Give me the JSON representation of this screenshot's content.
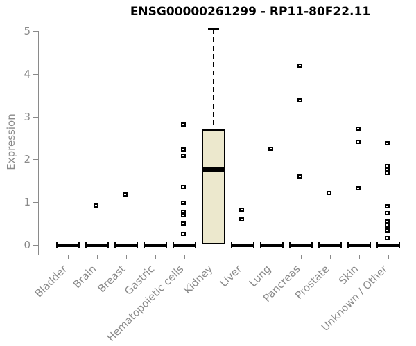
{
  "header": {
    "title": "ENSG00000261299 - RP11-80F22.11"
  },
  "chart_data": {
    "type": "boxplot",
    "title": "ENSG00000261299 - RP11-80F22.11",
    "xlabel": "",
    "ylabel": "Expression",
    "ylim": [
      0,
      5
    ],
    "yticks": [
      0,
      1,
      2,
      3,
      4,
      5
    ],
    "grid": false,
    "legend": "none",
    "box_fill_color": "#ece8cd",
    "box_line_color": "#000000",
    "axis_color": "#8a8a8a",
    "categories": [
      "Bladder",
      "Brain",
      "Breast",
      "Gastric",
      "Hematopoietic cells",
      "Kidney",
      "Liver",
      "Lung",
      "Pancreas",
      "Prostate",
      "Skin",
      "Unknown / Other"
    ],
    "boxes": [
      {
        "category": "Bladder",
        "q1": 0,
        "median": 0,
        "q3": 0,
        "whisker_low": 0,
        "whisker_high": 0,
        "outliers": []
      },
      {
        "category": "Brain",
        "q1": 0,
        "median": 0,
        "q3": 0,
        "whisker_low": 0,
        "whisker_high": 0,
        "outliers": [
          0.92
        ]
      },
      {
        "category": "Breast",
        "q1": 0,
        "median": 0,
        "q3": 0,
        "whisker_low": 0,
        "whisker_high": 0,
        "outliers": [
          1.18
        ]
      },
      {
        "category": "Gastric",
        "q1": 0,
        "median": 0,
        "q3": 0,
        "whisker_low": 0,
        "whisker_high": 0,
        "outliers": []
      },
      {
        "category": "Hematopoietic cells",
        "q1": 0,
        "median": 0,
        "q3": 0,
        "whisker_low": 0,
        "whisker_high": 0,
        "outliers": [
          2.82,
          2.23,
          2.09,
          1.36,
          0.99,
          0.78,
          0.7,
          0.5,
          0.26
        ]
      },
      {
        "category": "Kidney",
        "q1": 0.02,
        "median": 1.76,
        "q3": 2.7,
        "whisker_low": 0.02,
        "whisker_high": 5.05,
        "outliers": []
      },
      {
        "category": "Liver",
        "q1": 0,
        "median": 0,
        "q3": 0,
        "whisker_low": 0,
        "whisker_high": 0,
        "outliers": [
          0.83,
          0.6
        ]
      },
      {
        "category": "Lung",
        "q1": 0,
        "median": 0,
        "q3": 0,
        "whisker_low": 0,
        "whisker_high": 0,
        "outliers": [
          2.25
        ]
      },
      {
        "category": "Pancreas",
        "q1": 0,
        "median": 0,
        "q3": 0,
        "whisker_low": 0,
        "whisker_high": 0,
        "outliers": [
          4.19,
          3.38,
          1.6
        ]
      },
      {
        "category": "Prostate",
        "q1": 0,
        "median": 0,
        "q3": 0,
        "whisker_low": 0,
        "whisker_high": 0,
        "outliers": [
          1.21
        ]
      },
      {
        "category": "Skin",
        "q1": 0,
        "median": 0,
        "q3": 0,
        "whisker_low": 0,
        "whisker_high": 0,
        "outliers": [
          2.72,
          2.41,
          1.33
        ]
      },
      {
        "category": "Unknown / Other",
        "q1": 0,
        "median": 0,
        "q3": 0,
        "whisker_low": 0,
        "whisker_high": 0,
        "outliers": [
          2.38,
          1.84,
          1.76,
          1.68,
          0.91,
          0.74,
          0.55,
          0.47,
          0.39,
          0.34,
          0.16
        ]
      }
    ]
  }
}
